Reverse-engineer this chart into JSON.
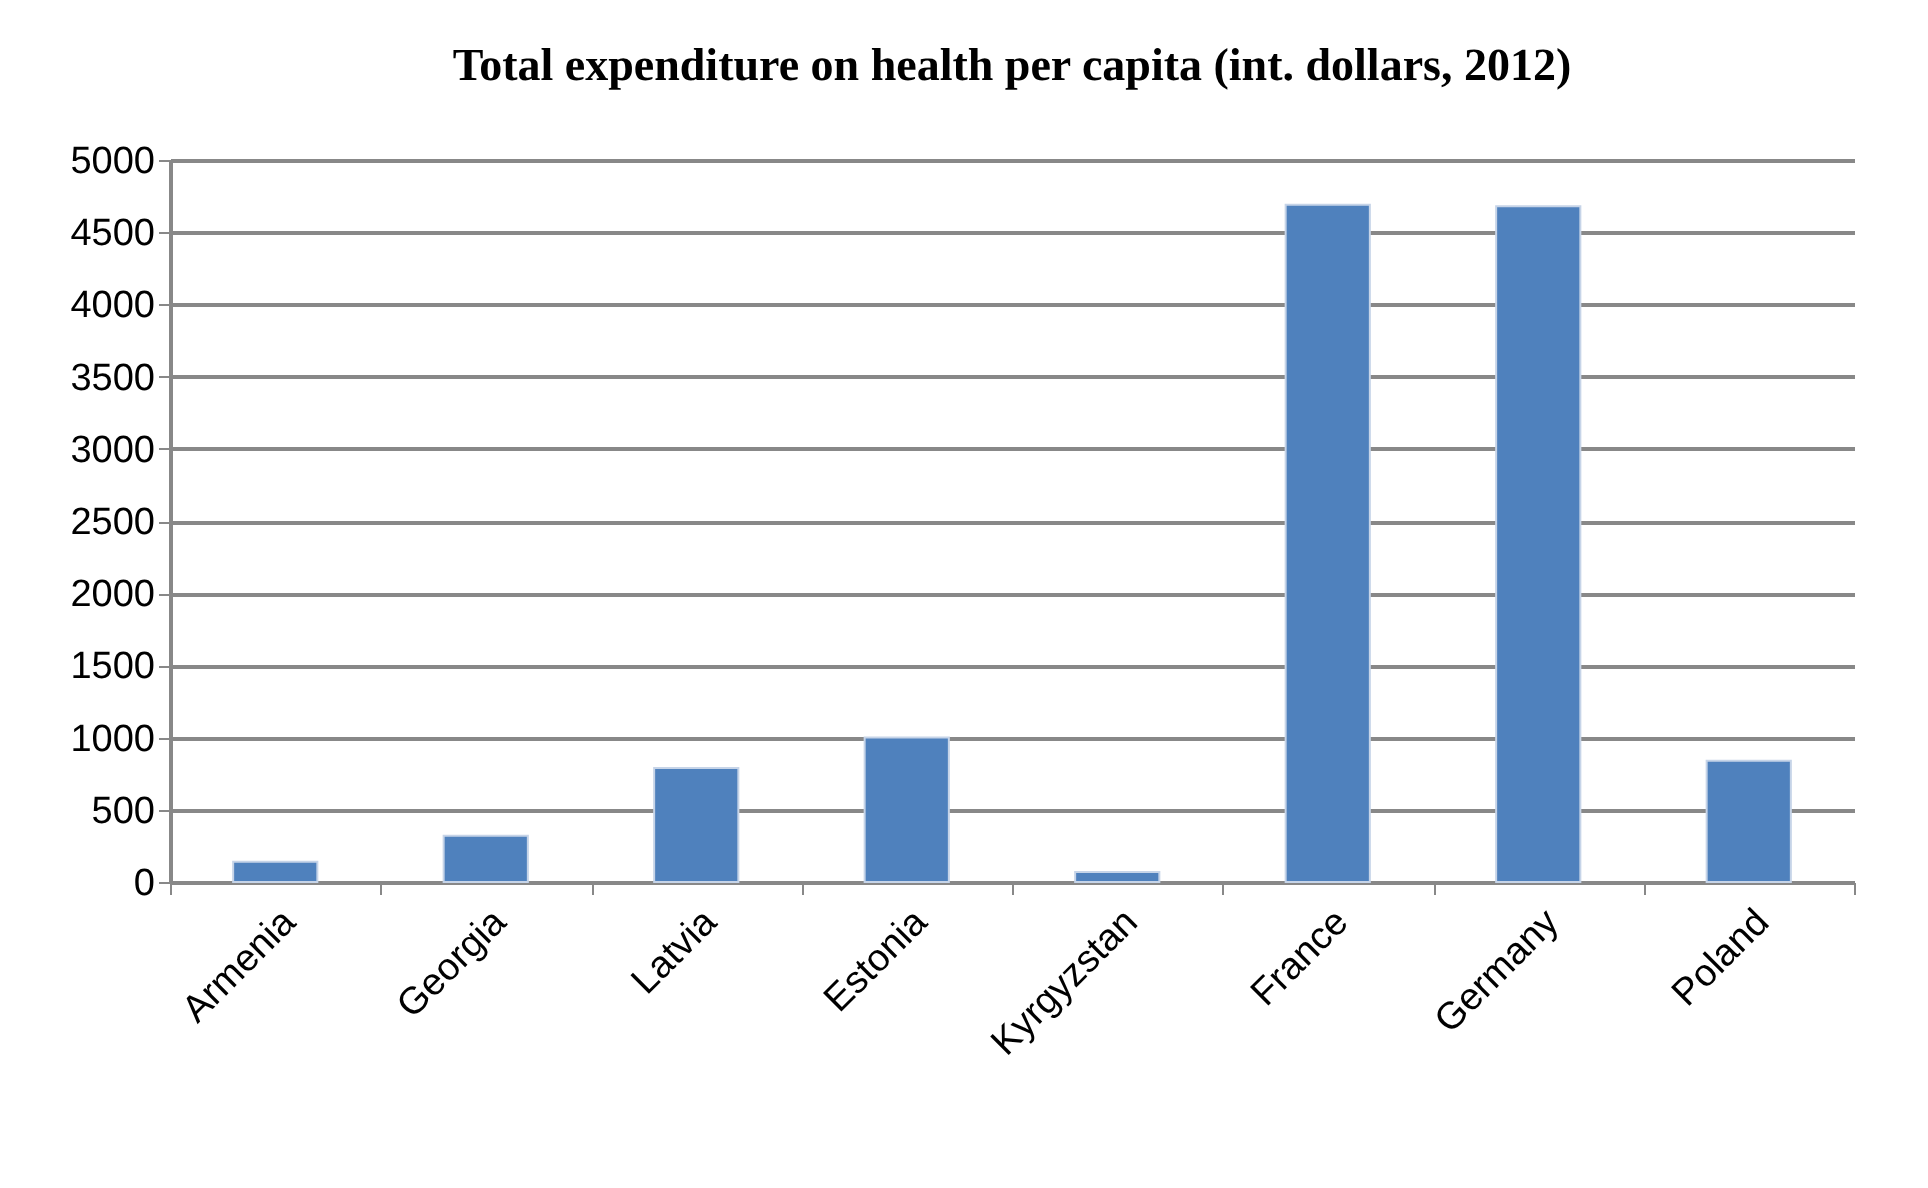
{
  "chart_data": {
    "type": "bar",
    "title": "Total expenditure on health per capita (int. dollars, 2012)",
    "categories": [
      "Armenia",
      "Georgia",
      "Latvia",
      "Estonia",
      "Kyrgyzstan",
      "France",
      "Germany",
      "Poland"
    ],
    "values": [
      140,
      320,
      790,
      1000,
      70,
      4690,
      4680,
      840
    ],
    "color": "#4f81bd",
    "ylim": [
      0,
      5000
    ],
    "yticks": [
      0,
      500,
      1000,
      1500,
      2000,
      2500,
      3000,
      3500,
      4000,
      4500,
      5000
    ],
    "grid": "y"
  }
}
